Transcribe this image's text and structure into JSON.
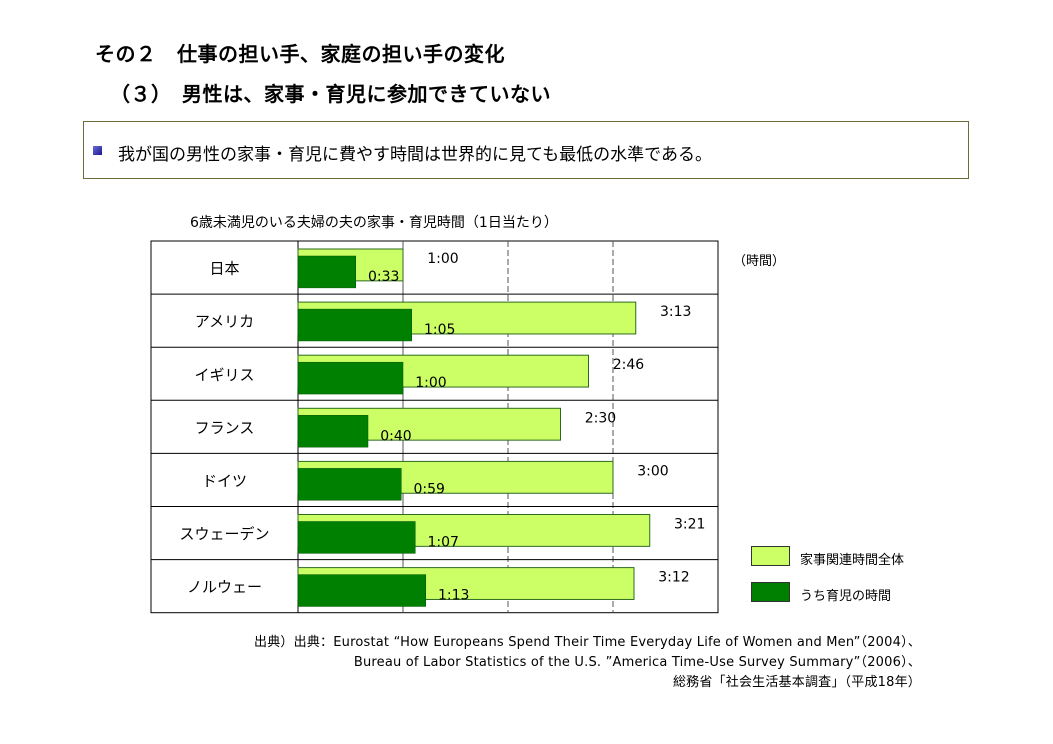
{
  "page": {
    "title": "その２　仕事の担い手、家庭の担い手の変化",
    "subtitle": "（３）　男性は、家事・育児に参加できていない",
    "summary": "我が国の男性の家事・育児に費やす時間は世界的に見ても最低の水準である。",
    "source_lines": [
      "出典）出典：Eurostat  “How Europeans Spend Their Time Everyday Life of Women and Men”（2004）、",
      "Bureau of Labor Statistics of the U.S. ”America Time-Use Survey Summary”（2006）、",
      "総務省「社会生活基本調査」（平成18年）"
    ]
  },
  "chart_data": {
    "type": "bar",
    "orientation": "horizontal",
    "title": "6歳未満児のいる夫婦の夫の家事・育児時間（1日当たり）",
    "unit": "（時間）",
    "categories": [
      "日本",
      "アメリカ",
      "イギリス",
      "フランス",
      "ドイツ",
      "スウェーデン",
      "ノルウェー"
    ],
    "series": [
      {
        "name": "家事関連時間全体",
        "color": "#ccff66",
        "values_minutes": [
          60,
          193,
          166,
          150,
          180,
          201,
          192
        ],
        "labels": [
          "1:00",
          "3:13",
          "2:46",
          "2:30",
          "3:00",
          "3:21",
          "3:12"
        ]
      },
      {
        "name": "うち育児の時間",
        "color": "#008000",
        "values_minutes": [
          33,
          65,
          60,
          40,
          59,
          67,
          73
        ],
        "labels": [
          "0:33",
          "1:05",
          "1:00",
          "0:40",
          "0:59",
          "1:07",
          "1:13"
        ]
      }
    ],
    "xlim_minutes": [
      0,
      240
    ],
    "gridlines_minutes": [
      60,
      120,
      180
    ],
    "legend_position": "right"
  }
}
